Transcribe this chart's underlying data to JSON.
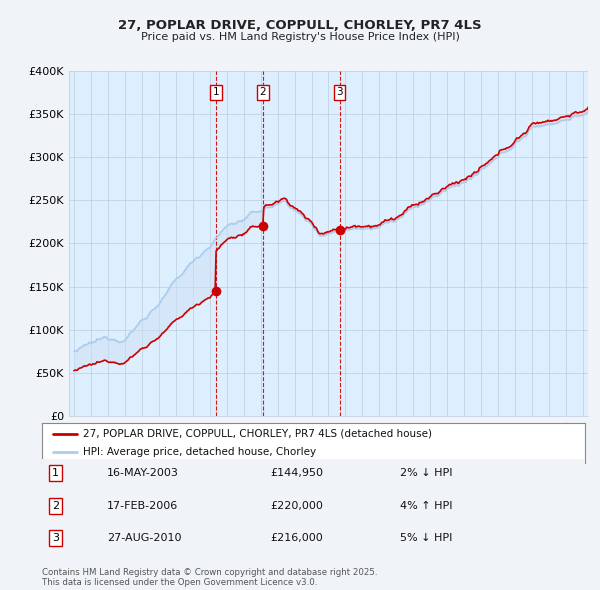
{
  "title": "27, POPLAR DRIVE, COPPULL, CHORLEY, PR7 4LS",
  "subtitle": "Price paid vs. HM Land Registry's House Price Index (HPI)",
  "ylim": [
    0,
    400000
  ],
  "yticks": [
    0,
    50000,
    100000,
    150000,
    200000,
    250000,
    300000,
    350000,
    400000
  ],
  "ytick_labels": [
    "£0",
    "£50K",
    "£100K",
    "£150K",
    "£200K",
    "£250K",
    "£300K",
    "£350K",
    "£400K"
  ],
  "sales": [
    {
      "num": 1,
      "date_str": "16-MAY-2003",
      "year": 2003.37,
      "price": 144950,
      "pct": "2%",
      "dir": "↓"
    },
    {
      "num": 2,
      "date_str": "17-FEB-2006",
      "year": 2006.13,
      "price": 220000,
      "pct": "4%",
      "dir": "↑"
    },
    {
      "num": 3,
      "date_str": "27-AUG-2010",
      "year": 2010.65,
      "price": 216000,
      "pct": "5%",
      "dir": "↓"
    }
  ],
  "line_color_red": "#cc0000",
  "line_color_blue": "#aaccee",
  "fill_color_blue": "#cce0f0",
  "dot_color": "#cc0000",
  "vline_color": "#cc0000",
  "legend_label_red": "27, POPLAR DRIVE, COPPULL, CHORLEY, PR7 4LS (detached house)",
  "legend_label_blue": "HPI: Average price, detached house, Chorley",
  "footnote": "Contains HM Land Registry data © Crown copyright and database right 2025.\nThis data is licensed under the Open Government Licence v3.0.",
  "bg_color": "#f0f4f8",
  "plot_bg_color": "#ddeeff",
  "grid_color": "#bbccdd",
  "xstart": 1995,
  "xend": 2025
}
